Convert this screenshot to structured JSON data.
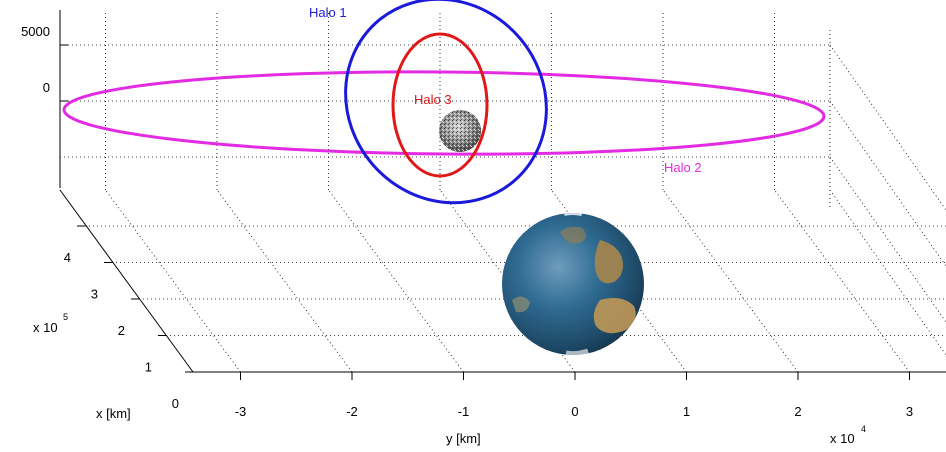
{
  "chart_data": {
    "type": "scatter",
    "title": "",
    "xlabel": "x [km]",
    "ylabel": "y [km]",
    "x_exponent_base": "x 10",
    "x_exponent_power": "5",
    "y_exponent_base": "x 10",
    "y_exponent_power": "4",
    "y_ticks": [
      "-3",
      "-2",
      "-1",
      "0",
      "1",
      "2",
      "3"
    ],
    "x_ticks": [
      "0",
      "1",
      "2",
      "3",
      "4"
    ],
    "z_ticks": [
      "5000",
      "0"
    ],
    "series": [
      {
        "name": "Halo 1",
        "color": "#1a1adb"
      },
      {
        "name": "Halo 2",
        "color": "#e22be2"
      },
      {
        "name": "Halo 3",
        "color": "#e01818"
      }
    ],
    "bodies": [
      {
        "name": "earth-sphere",
        "color": "#2b5f86"
      },
      {
        "name": "moon-sphere",
        "color": "#8a8a8a"
      }
    ],
    "grid": true
  }
}
